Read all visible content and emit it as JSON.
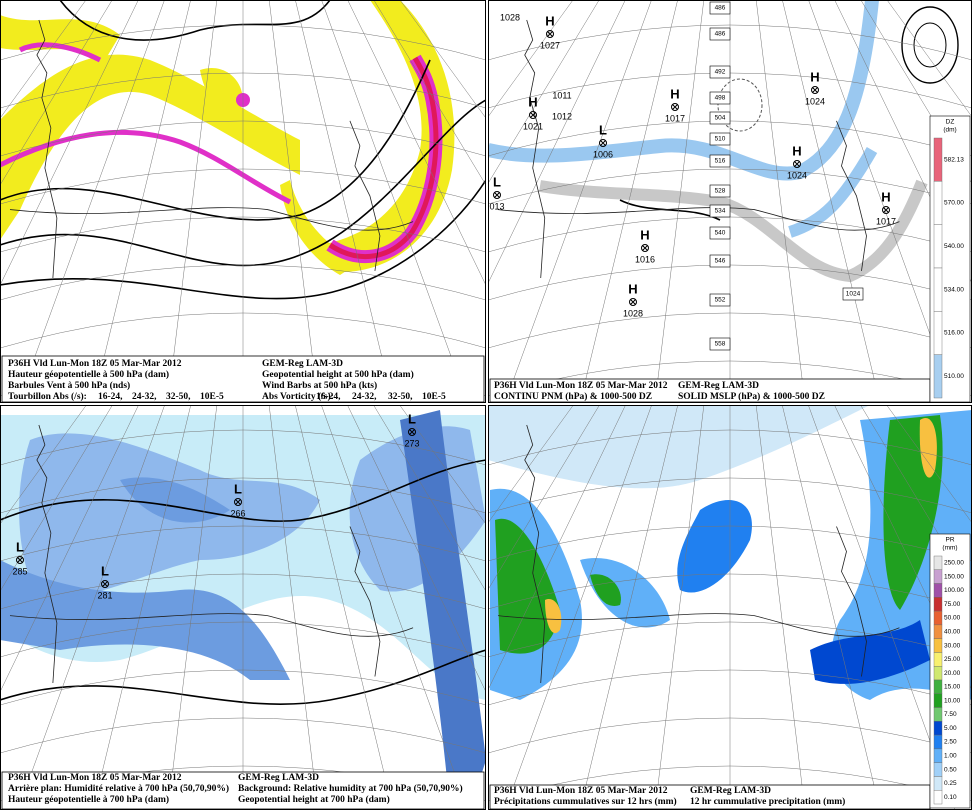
{
  "panels": [
    {
      "caption": {
        "left": [
          "P36H Vld Lun-Mon 18Z 05 Mar-Mar 2012",
          "Hauteur géopotentielle à 500 hPa (dam)",
          "Barbules Vent à 500 hPa (nds)",
          "Tourbillon Abs (/s):"
        ],
        "right": [
          "GEM-Reg LAM-3D",
          "Geopotential height at 500 hPa (dam)",
          "Wind Barbs at 500 hPa (kts)",
          "Abs Vorticity (/s):"
        ],
        "legend_left": [
          {
            "text": "16-24,",
            "color": "#a8a000"
          },
          {
            "text": "24-32,",
            "color": "#e020d0"
          },
          {
            "text": "32-50,",
            "color": "#e0103a"
          },
          {
            "text": "10E-5",
            "color": "#000000"
          }
        ],
        "legend_right": [
          {
            "text": "16-24,",
            "color": "#a8a000"
          },
          {
            "text": "24-32,",
            "color": "#e020d0"
          },
          {
            "text": "32-50,",
            "color": "#e0103a"
          },
          {
            "text": "10E-5",
            "color": "#000000"
          }
        ]
      }
    },
    {
      "caption": {
        "left": [
          "P36H Vld Lun-Mon 18Z 05 Mar-Mar 2012",
          "CONTINU PNM  (hPa) & 1000-500 DZ"
        ],
        "right": [
          "GEM-Reg LAM-3D",
          "SOLID  MSLP (hPa) & 1000-500 DZ"
        ]
      },
      "labels": [
        {
          "value": "1028"
        },
        {
          "symbol": "H",
          "value": "1027"
        },
        {
          "value": "1011"
        },
        {
          "value": "1012"
        },
        {
          "symbol": "H",
          "value": "1021"
        },
        {
          "symbol": "H",
          "value": "1017"
        },
        {
          "symbol": "L",
          "value": "1006"
        },
        {
          "symbol": "H",
          "value": "1024"
        },
        {
          "symbol": "H",
          "value": "1024"
        },
        {
          "symbol": "H",
          "value": "1017"
        },
        {
          "symbol": "L",
          "value": "013"
        },
        {
          "symbol": "H",
          "value": "1016"
        },
        {
          "symbol": "H",
          "value": "1028"
        }
      ],
      "boxes": [
        "486",
        "486",
        "492",
        "498",
        "504",
        "510",
        "516",
        "528",
        "534",
        "540",
        "546",
        "552",
        "558",
        "1024"
      ],
      "scale": {
        "title": [
          "DZ",
          "(dm)"
        ],
        "steps": [
          {
            "label": "582.13",
            "color": "#e8647a"
          },
          {
            "label": "570.00",
            "color": "#ffffff"
          },
          {
            "label": "540.00",
            "color": "#ffffff"
          },
          {
            "label": "534.00",
            "color": "#ffffff"
          },
          {
            "label": "516.00",
            "color": "#ffffff"
          },
          {
            "label": "510.00",
            "color": "#a8cff0"
          }
        ]
      }
    },
    {
      "caption": {
        "left": [
          "P36H Vld Lun-Mon 18Z 05 Mar-Mar 2012",
          "Arrière plan: Humidité relative à 700 hPa (50,70,90%)",
          "Hauteur géopotentielle à 700 hPa (dam)"
        ],
        "right": [
          "GEM-Reg LAM-3D",
          "Background: Relative humidity at 700 hPa (50,70,90%)",
          "Geopotential height at 700 hPa (dam)"
        ]
      },
      "labels": [
        {
          "symbol": "L",
          "value": "273"
        },
        {
          "symbol": "L",
          "value": "266"
        },
        {
          "symbol": "L",
          "value": "285"
        },
        {
          "symbol": "L",
          "value": "281"
        }
      ]
    },
    {
      "caption": {
        "left": [
          "P36H Vld Lun-Mon 18Z 05 Mar-Mar 2012",
          "Précipitations cummulatives sur 12 hrs (mm)"
        ],
        "right": [
          "GEM-Reg LAM-3D",
          "12 hr cummulative precipitation     (mm)"
        ]
      },
      "scale": {
        "title": [
          "PR",
          "(mm)"
        ],
        "steps": [
          {
            "label": "250.00",
            "color": "#e6e6e6"
          },
          {
            "label": "150.00",
            "color": "#c8a0d0"
          },
          {
            "label": "100.00",
            "color": "#a050a8"
          },
          {
            "label": "75.00",
            "color": "#c83030"
          },
          {
            "label": "50.00",
            "color": "#e86030"
          },
          {
            "label": "40.00",
            "color": "#f09040"
          },
          {
            "label": "30.00",
            "color": "#f8c040"
          },
          {
            "label": "25.00",
            "color": "#f8f070"
          },
          {
            "label": "20.00",
            "color": "#d0e870"
          },
          {
            "label": "15.00",
            "color": "#40b040"
          },
          {
            "label": "10.00",
            "color": "#20a020"
          },
          {
            "label": "7.50",
            "color": "#70c870"
          },
          {
            "label": "5.00",
            "color": "#0048d0"
          },
          {
            "label": "2.50",
            "color": "#2080f0"
          },
          {
            "label": "1.00",
            "color": "#60b0f8"
          },
          {
            "label": "0.50",
            "color": "#a0d0f8"
          },
          {
            "label": "0.25",
            "color": "#d0e8f8"
          },
          {
            "label": "0.10",
            "color": "#ffffff"
          }
        ]
      }
    }
  ]
}
